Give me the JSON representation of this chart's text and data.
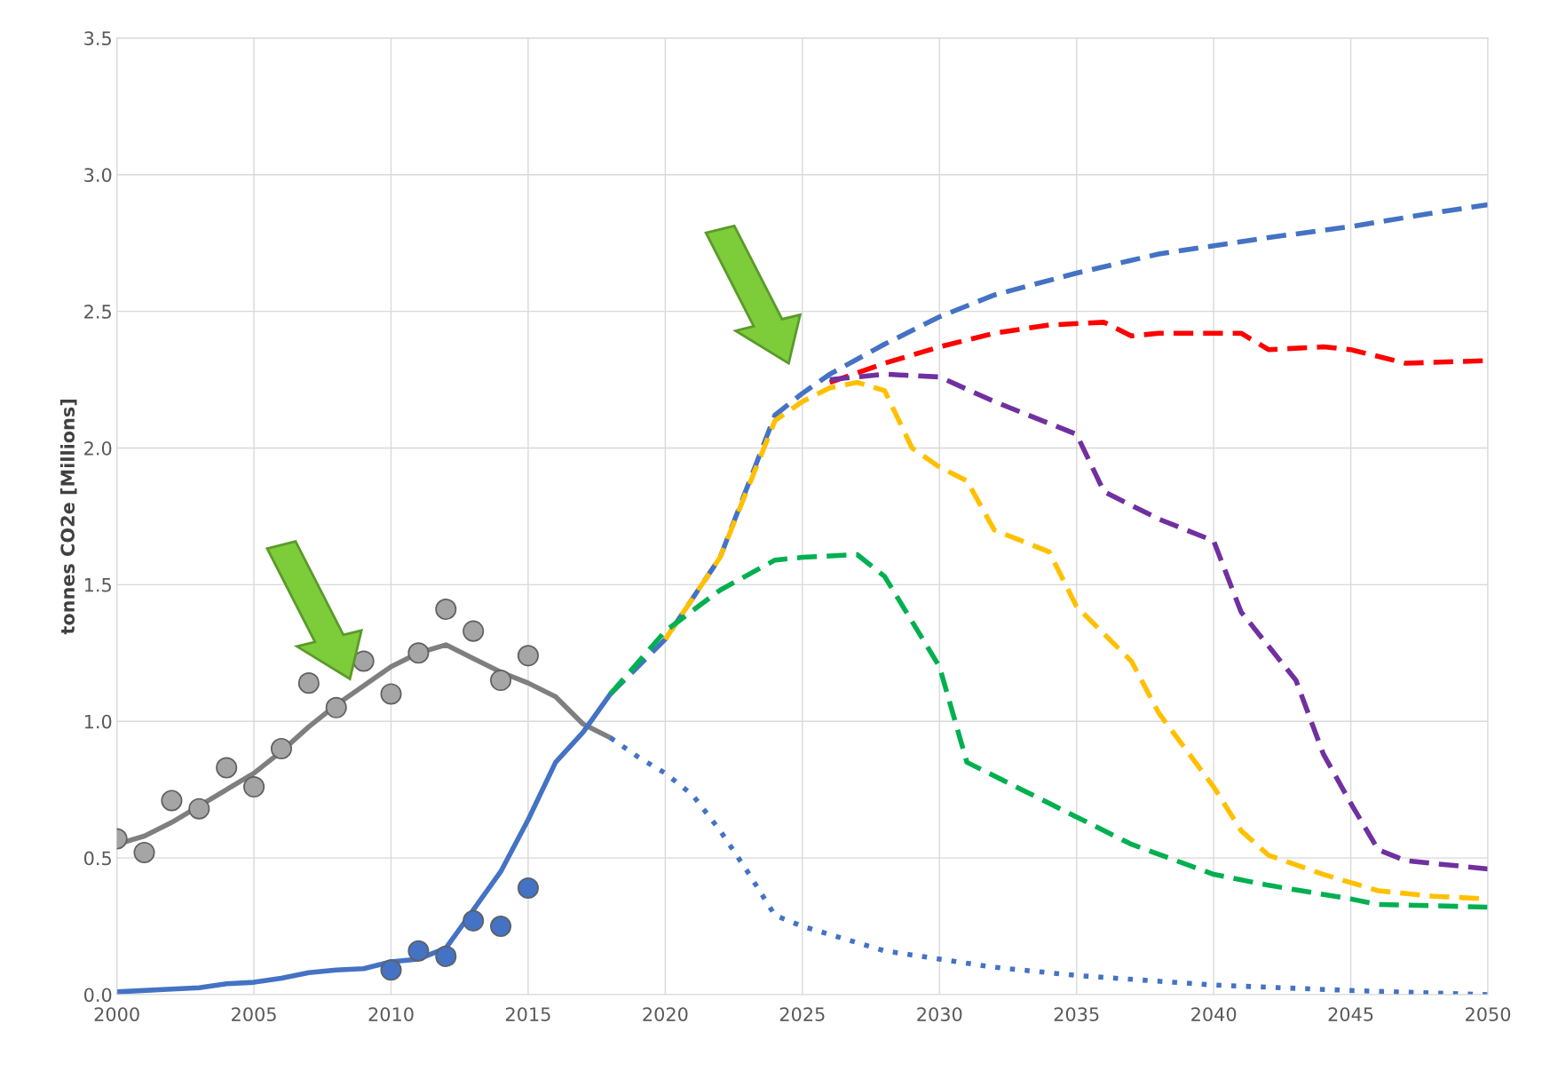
{
  "chart_data": {
    "type": "line",
    "ylabel": "tonnes CO2e [Millions]",
    "xlim": [
      2000,
      2050
    ],
    "xticks": [
      2000,
      2005,
      2010,
      2015,
      2020,
      2025,
      2030,
      2035,
      2040,
      2045,
      2050
    ],
    "ylim": [
      0,
      3.5
    ],
    "yticks": [
      {
        "value": 0,
        "label": "0.0"
      },
      {
        "value": 0.5,
        "label": "0.5"
      },
      {
        "value": 1,
        "label": "1.0"
      },
      {
        "value": 1.5,
        "label": "1.5"
      },
      {
        "value": 2,
        "label": "2.0"
      },
      {
        "value": 2.5,
        "label": "2.5"
      },
      {
        "value": 3,
        "label": "3.0"
      },
      {
        "value": 3.5,
        "label": "3.5"
      }
    ],
    "grid": true,
    "series": [
      {
        "type": "scatter",
        "marker": "circle",
        "color": "#a5a5a5",
        "x": [
          2000,
          2001,
          2002,
          2003,
          2004,
          2005,
          2006,
          2007,
          2008,
          2009,
          2010,
          2011,
          2012,
          2013,
          2014,
          2015
        ],
        "values": [
          0.57,
          0.52,
          0.71,
          0.68,
          0.83,
          0.76,
          0.9,
          1.14,
          1.05,
          1.22,
          1.1,
          1.25,
          1.41,
          1.33,
          1.15,
          1.24
        ]
      },
      {
        "type": "line",
        "line_style": "solid",
        "color": "#7f7f7f",
        "x": [
          2000,
          2001,
          2002,
          2003,
          2004,
          2005,
          2006,
          2007,
          2008,
          2009,
          2010,
          2011,
          2012,
          2013,
          2014,
          2015,
          2016,
          2017,
          2018
        ],
        "values": [
          0.55,
          0.58,
          0.63,
          0.69,
          0.75,
          0.81,
          0.89,
          0.98,
          1.06,
          1.13,
          1.2,
          1.25,
          1.28,
          1.23,
          1.18,
          1.14,
          1.09,
          0.99,
          0.94
        ]
      },
      {
        "type": "line",
        "line_style": "dotted",
        "color": "#4472c4",
        "x": [
          2018,
          2019,
          2020,
          2021,
          2022,
          2023,
          2024,
          2025,
          2026,
          2027,
          2028,
          2030,
          2032,
          2035,
          2040,
          2045,
          2050
        ],
        "values": [
          0.94,
          0.87,
          0.81,
          0.73,
          0.6,
          0.45,
          0.29,
          0.25,
          0.22,
          0.19,
          0.16,
          0.13,
          0.1,
          0.07,
          0.035,
          0.015,
          0.0
        ]
      },
      {
        "type": "scatter",
        "marker": "circle",
        "color": "#4472c4",
        "x": [
          2010,
          2011,
          2012,
          2013,
          2014,
          2015
        ],
        "values": [
          0.09,
          0.16,
          0.14,
          0.27,
          0.25,
          0.39
        ]
      },
      {
        "type": "line",
        "line_style": "solid",
        "color": "#4472c4",
        "x": [
          2000,
          2002,
          2003,
          2004,
          2005,
          2006,
          2007,
          2008,
          2009,
          2010,
          2011,
          2012,
          2013,
          2014,
          2015,
          2016,
          2017,
          2018
        ],
        "values": [
          0.01,
          0.02,
          0.025,
          0.04,
          0.045,
          0.06,
          0.08,
          0.09,
          0.095,
          0.12,
          0.13,
          0.17,
          0.31,
          0.45,
          0.64,
          0.85,
          0.96,
          1.1
        ]
      },
      {
        "type": "line",
        "line_style": "dashed",
        "color": "#4472c4",
        "x": [
          2018,
          2020,
          2022,
          2024,
          2025,
          2026,
          2028,
          2030,
          2032,
          2035,
          2038,
          2040,
          2042,
          2045,
          2048,
          2050
        ],
        "values": [
          1.1,
          1.3,
          1.6,
          2.12,
          2.2,
          2.27,
          2.38,
          2.48,
          2.56,
          2.64,
          2.71,
          2.74,
          2.77,
          2.81,
          2.86,
          2.89
        ]
      },
      {
        "type": "line",
        "line_style": "dashed",
        "color": "#ff0000",
        "x": [
          2026,
          2028,
          2030,
          2032,
          2034,
          2036,
          2037,
          2038,
          2040,
          2041,
          2042,
          2044,
          2045,
          2047,
          2050
        ],
        "values": [
          2.24,
          2.31,
          2.37,
          2.42,
          2.45,
          2.46,
          2.41,
          2.42,
          2.42,
          2.42,
          2.36,
          2.37,
          2.36,
          2.31,
          2.32
        ]
      },
      {
        "type": "line",
        "line_style": "dashed",
        "color": "#7030a0",
        "x": [
          2026,
          2028,
          2030,
          2032,
          2035,
          2036,
          2038,
          2040,
          2041,
          2043,
          2044,
          2045,
          2046,
          2047,
          2050
        ],
        "values": [
          2.25,
          2.27,
          2.26,
          2.17,
          2.05,
          1.84,
          1.74,
          1.66,
          1.4,
          1.15,
          0.88,
          0.7,
          0.53,
          0.49,
          0.46
        ]
      },
      {
        "line_style": "dashed",
        "color": "#ffc000",
        "x": [
          2020,
          2022,
          2024,
          2025,
          2026,
          2027,
          2028,
          2029,
          2030,
          2031,
          2032,
          2034,
          2035,
          2037,
          2038,
          2040,
          2041,
          2042,
          2044,
          2046,
          2048,
          2050
        ],
        "values": [
          1.3,
          1.6,
          2.1,
          2.17,
          2.22,
          2.24,
          2.21,
          2.0,
          1.93,
          1.88,
          1.7,
          1.62,
          1.42,
          1.22,
          1.03,
          0.76,
          0.6,
          0.51,
          0.44,
          0.38,
          0.36,
          0.35
        ]
      },
      {
        "line_style": "dashed",
        "color": "#00b050",
        "x": [
          2018,
          2020,
          2022,
          2024,
          2025,
          2027,
          2028,
          2030,
          2031,
          2033,
          2035,
          2037,
          2040,
          2042,
          2045,
          2046,
          2050
        ],
        "values": [
          1.1,
          1.33,
          1.48,
          1.59,
          1.6,
          1.61,
          1.53,
          1.2,
          0.85,
          0.75,
          0.65,
          0.55,
          0.44,
          0.4,
          0.35,
          0.33,
          0.32
        ]
      }
    ]
  }
}
